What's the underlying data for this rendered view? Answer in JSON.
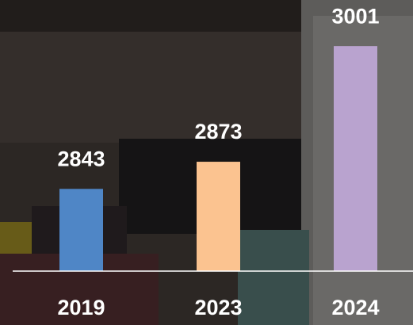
{
  "chart_data": {
    "type": "bar",
    "categories": [
      "2019",
      "2023",
      "2024"
    ],
    "values": [
      2843,
      2873,
      3001
    ],
    "colors": [
      "#4f86c6",
      "#fbc390",
      "#b9a3cf"
    ],
    "ylim": [
      2752,
      3052
    ]
  }
}
